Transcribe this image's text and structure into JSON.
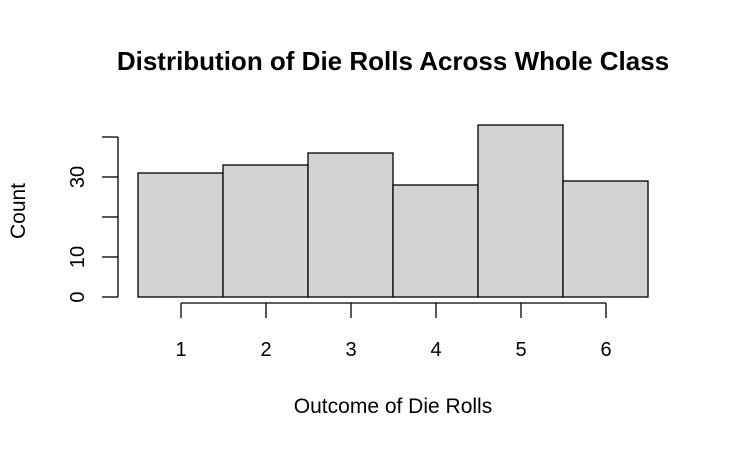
{
  "chart_data": {
    "type": "bar",
    "title": "Distribution of Die Rolls Across Whole Class",
    "xlabel": "Outcome of Die Rolls",
    "ylabel": "Count",
    "categories": [
      "1",
      "2",
      "3",
      "4",
      "5",
      "6"
    ],
    "values": [
      31,
      33,
      36,
      28,
      43,
      29
    ],
    "ylim": [
      0,
      40
    ],
    "yticks": [
      0,
      10,
      20,
      30,
      40
    ],
    "ytick_labels": [
      "0",
      "10",
      "",
      "30",
      ""
    ],
    "grid": false,
    "bar_color": "#d3d3d3",
    "edge_color": "#000000"
  }
}
